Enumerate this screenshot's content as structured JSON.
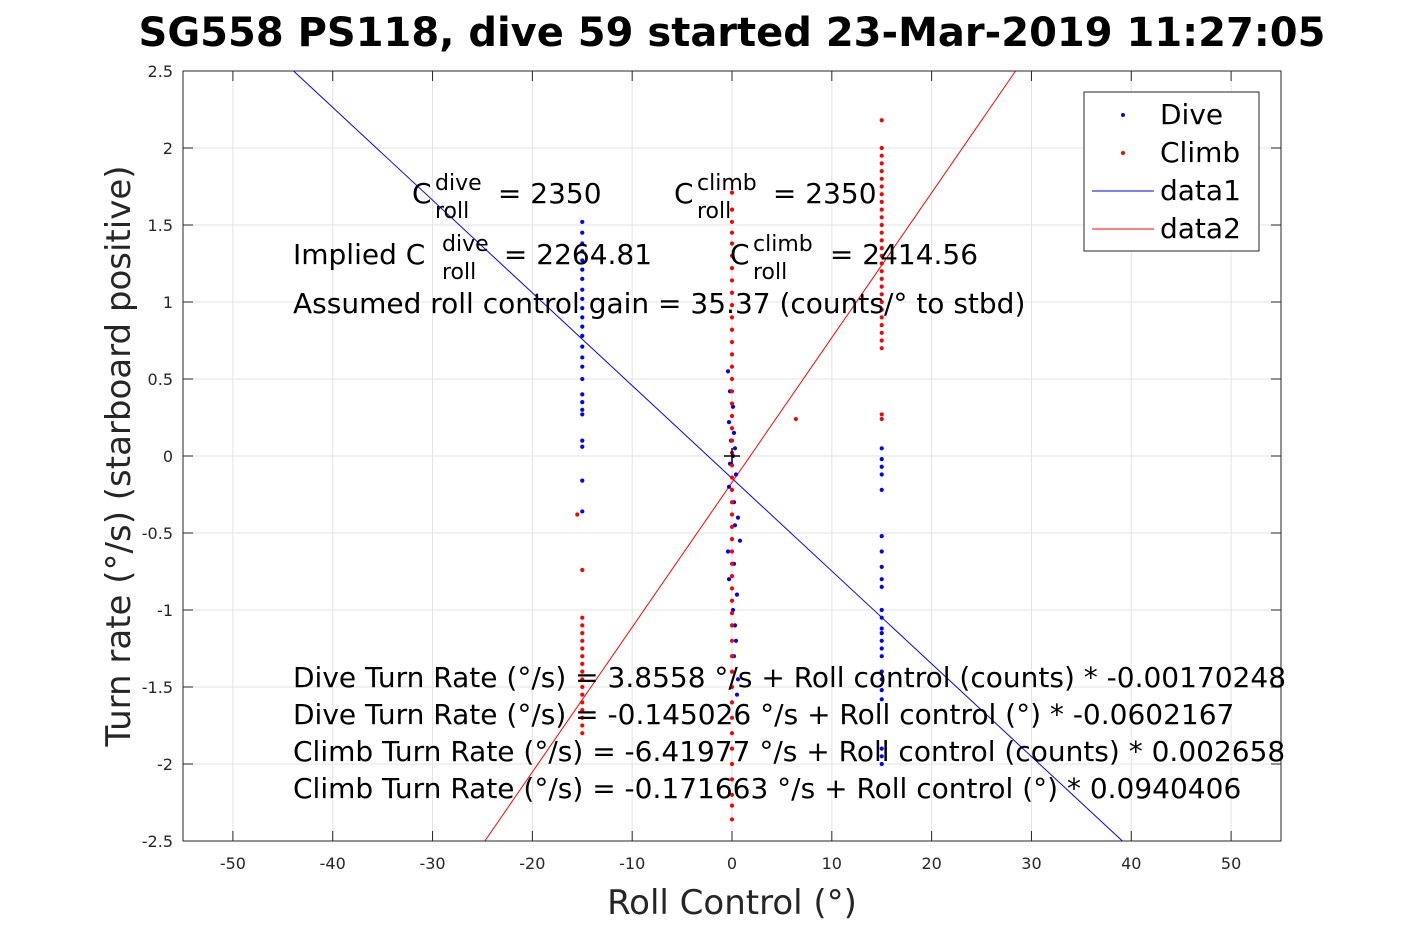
{
  "chart_data": {
    "type": "scatter",
    "title": "SG558 PS118, dive 59 started 23-Mar-2019 11:27:05",
    "xlabel": "Roll Control (°)",
    "ylabel": "Turn rate (°/s) (starboard positive)",
    "xlim": [
      -55,
      55
    ],
    "ylim": [
      -2.5,
      2.5
    ],
    "xticks": [
      -50,
      -40,
      -30,
      -20,
      -10,
      0,
      10,
      20,
      30,
      40,
      50
    ],
    "yticks": [
      -2.5,
      -2,
      -1.5,
      -1,
      -0.5,
      0,
      0.5,
      1,
      1.5,
      2,
      2.5
    ],
    "grid": true,
    "legend_position": "top-right",
    "series": [
      {
        "name": "Dive",
        "kind": "points",
        "color": "#0000ff",
        "points": [
          [
            -15,
            1.52
          ],
          [
            -15,
            1.45
          ],
          [
            -15,
            1.38
          ],
          [
            -15,
            1.33
          ],
          [
            -15,
            1.27
          ],
          [
            -15,
            1.21
          ],
          [
            -15,
            1.15
          ],
          [
            -15,
            1.08
          ],
          [
            -15,
            1.02
          ],
          [
            -15,
            0.96
          ],
          [
            -15,
            0.9
          ],
          [
            -15,
            0.84
          ],
          [
            -15,
            0.78
          ],
          [
            -15,
            0.71
          ],
          [
            -15,
            0.64
          ],
          [
            -15,
            0.58
          ],
          [
            -15,
            0.5
          ],
          [
            -15,
            0.4
          ],
          [
            -15,
            0.35
          ],
          [
            -15,
            0.3
          ],
          [
            -15,
            0.27
          ],
          [
            -15,
            0.1
          ],
          [
            -15,
            0.06
          ],
          [
            -15,
            -0.16
          ],
          [
            -15,
            -0.36
          ],
          [
            -0.4,
            0.55
          ],
          [
            -0.2,
            0.42
          ],
          [
            0.1,
            0.32
          ],
          [
            -0.3,
            0.22
          ],
          [
            0.2,
            0.15
          ],
          [
            -0.1,
            0.1
          ],
          [
            0.3,
            0.05
          ],
          [
            0.1,
            0.0
          ],
          [
            -0.2,
            -0.05
          ],
          [
            0.4,
            -0.12
          ],
          [
            -0.3,
            -0.2
          ],
          [
            0.2,
            -0.3
          ],
          [
            0.6,
            -0.4
          ],
          [
            0.3,
            -0.45
          ],
          [
            0.8,
            -0.55
          ],
          [
            -0.4,
            -0.62
          ],
          [
            0.2,
            -0.7
          ],
          [
            -0.3,
            -0.8
          ],
          [
            0.5,
            -0.9
          ],
          [
            0.1,
            -1.0
          ],
          [
            0.3,
            -1.1
          ],
          [
            0.4,
            -1.2
          ],
          [
            0.2,
            -1.3
          ],
          [
            0.6,
            -1.45
          ],
          [
            0.5,
            -1.55
          ],
          [
            15,
            0.05
          ],
          [
            15,
            -0.02
          ],
          [
            15,
            -0.07
          ],
          [
            15,
            -0.12
          ],
          [
            15,
            -0.22
          ],
          [
            15,
            -0.52
          ],
          [
            15,
            -0.62
          ],
          [
            15,
            -0.72
          ],
          [
            15,
            -0.8
          ],
          [
            15,
            -0.85
          ],
          [
            15,
            -1.0
          ],
          [
            15,
            -1.05
          ],
          [
            15,
            -1.12
          ],
          [
            15,
            -1.15
          ],
          [
            15,
            -1.2
          ],
          [
            15,
            -1.25
          ],
          [
            15,
            -1.3
          ],
          [
            15,
            -1.4
          ],
          [
            15,
            -1.45
          ],
          [
            15,
            -1.52
          ],
          [
            15,
            -1.58
          ],
          [
            15,
            -1.9
          ],
          [
            15,
            -1.95
          ],
          [
            15,
            -2.0
          ]
        ]
      },
      {
        "name": "Climb",
        "kind": "points",
        "color": "#ff0000",
        "points": [
          [
            -15.5,
            -0.38
          ],
          [
            -15,
            -0.74
          ],
          [
            -15,
            -1.05
          ],
          [
            -15,
            -1.1
          ],
          [
            -15,
            -1.15
          ],
          [
            -15,
            -1.2
          ],
          [
            -15,
            -1.25
          ],
          [
            -15,
            -1.3
          ],
          [
            -15,
            -1.35
          ],
          [
            -15,
            -1.4
          ],
          [
            -15,
            -1.45
          ],
          [
            -15,
            -1.5
          ],
          [
            -15,
            -1.55
          ],
          [
            -15,
            -1.6
          ],
          [
            -15,
            -1.65
          ],
          [
            -15,
            -1.7
          ],
          [
            -15,
            -1.75
          ],
          [
            -15,
            -1.8
          ],
          [
            0,
            1.71
          ],
          [
            0,
            1.6
          ],
          [
            0,
            1.52
          ],
          [
            0,
            1.45
          ],
          [
            0,
            1.38
          ],
          [
            0,
            1.3
          ],
          [
            0,
            1.22
          ],
          [
            0,
            1.14
          ],
          [
            0,
            1.06
          ],
          [
            0,
            0.98
          ],
          [
            0,
            0.9
          ],
          [
            0,
            0.82
          ],
          [
            0,
            0.74
          ],
          [
            0,
            0.66
          ],
          [
            0,
            0.58
          ],
          [
            0,
            0.5
          ],
          [
            0,
            0.42
          ],
          [
            0,
            0.34
          ],
          [
            0,
            0.26
          ],
          [
            0,
            0.18
          ],
          [
            0,
            0.1
          ],
          [
            0,
            0.02
          ],
          [
            0,
            -0.06
          ],
          [
            0,
            -0.14
          ],
          [
            0,
            -0.22
          ],
          [
            0,
            -0.3
          ],
          [
            0,
            -0.38
          ],
          [
            0,
            -0.46
          ],
          [
            0,
            -0.54
          ],
          [
            0,
            -0.62
          ],
          [
            0,
            -0.7
          ],
          [
            0,
            -0.78
          ],
          [
            0,
            -0.86
          ],
          [
            0,
            -0.94
          ],
          [
            0,
            -1.02
          ],
          [
            0,
            -1.1
          ],
          [
            0,
            -1.2
          ],
          [
            0,
            -1.3
          ],
          [
            0,
            -1.4
          ],
          [
            0,
            -1.5
          ],
          [
            0,
            -1.6
          ],
          [
            0,
            -1.7
          ],
          [
            0,
            -1.8
          ],
          [
            0,
            -1.9
          ],
          [
            0,
            -2.0
          ],
          [
            0,
            -2.1
          ],
          [
            0,
            -2.2
          ],
          [
            0,
            -2.27
          ],
          [
            0,
            -2.36
          ],
          [
            6.4,
            0.24
          ],
          [
            15,
            2.18
          ],
          [
            15,
            2.0
          ],
          [
            15,
            1.95
          ],
          [
            15,
            1.9
          ],
          [
            15,
            1.85
          ],
          [
            15,
            1.8
          ],
          [
            15,
            1.75
          ],
          [
            15,
            1.7
          ],
          [
            15,
            1.65
          ],
          [
            15,
            1.6
          ],
          [
            15,
            1.55
          ],
          [
            15,
            1.5
          ],
          [
            15,
            1.45
          ],
          [
            15,
            1.4
          ],
          [
            15,
            1.35
          ],
          [
            15,
            1.3
          ],
          [
            15,
            1.25
          ],
          [
            15,
            1.2
          ],
          [
            15,
            1.15
          ],
          [
            15,
            1.1
          ],
          [
            15,
            1.05
          ],
          [
            15,
            1.0
          ],
          [
            15,
            0.95
          ],
          [
            15,
            0.9
          ],
          [
            15,
            0.85
          ],
          [
            15,
            0.8
          ],
          [
            15,
            0.75
          ],
          [
            15,
            0.7
          ],
          [
            15,
            0.27
          ],
          [
            15,
            0.24
          ]
        ]
      },
      {
        "name": "data1",
        "kind": "line",
        "color": "#0000ff",
        "intercept": -0.145026,
        "slope": -0.0602167
      },
      {
        "name": "data2",
        "kind": "line",
        "color": "#ff0000",
        "intercept": -0.171663,
        "slope": 0.0940406
      }
    ],
    "marker": {
      "x": 0,
      "y": 0,
      "symbol": "+",
      "color": "#000000"
    },
    "annotations": {
      "c_dive": {
        "base": "C",
        "sup": "dive",
        "sub": "roll",
        "rest": " = 2350"
      },
      "c_climb": {
        "base": "C",
        "sup": "climb",
        "sub": "roll",
        "rest": " = 2350"
      },
      "implied_dive": {
        "prefix": "Implied C",
        "sup": "dive",
        "sub": "roll",
        "rest": " = 2264.81"
      },
      "implied_climb": {
        "base": "C",
        "sup": "climb",
        "sub": "roll",
        "rest": " = 2414.56"
      },
      "gain": "Assumed roll control gain = 35.37 (counts/° to stbd)",
      "eq1": "Dive Turn Rate (°/s) = 3.8558 °/s + Roll control (counts) * -0.00170248",
      "eq2": "Dive Turn Rate (°/s) = -0.145026 °/s + Roll control (°) * -0.0602167",
      "eq3": "Climb Turn Rate (°/s) = -6.41977 °/s + Roll control (counts) * 0.002658",
      "eq4": "Climb Turn Rate (°/s) = -0.171663 °/s + Roll control (°) * 0.0940406"
    }
  }
}
